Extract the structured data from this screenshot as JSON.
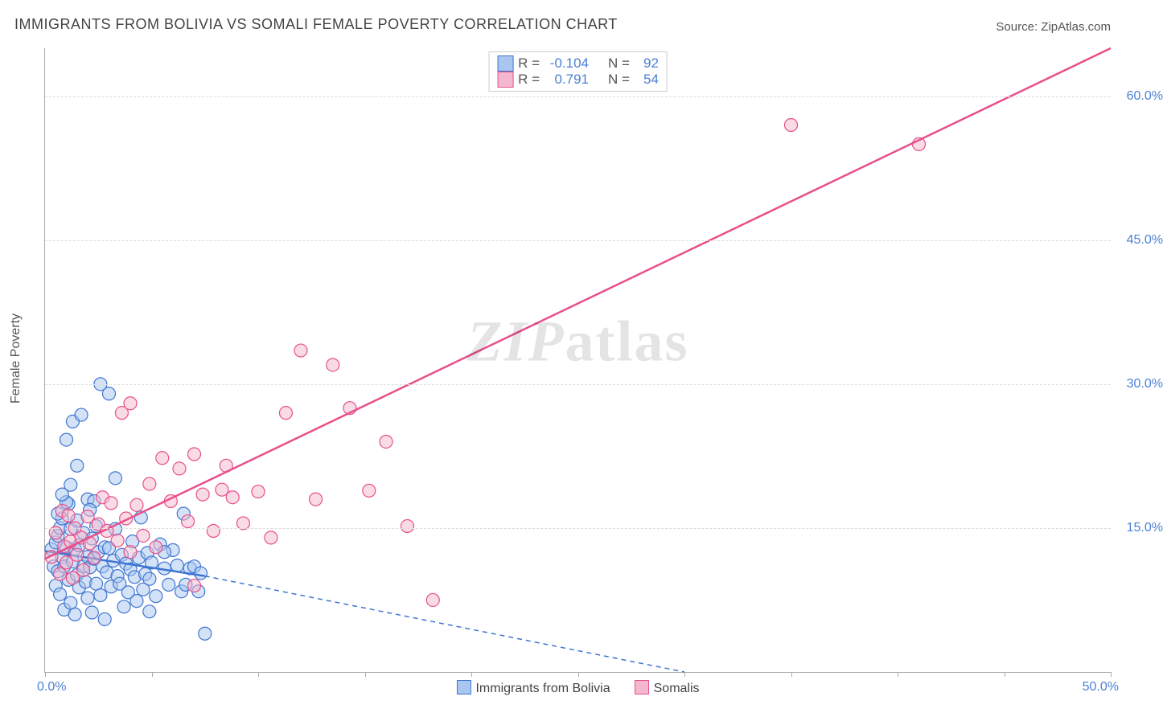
{
  "title": "IMMIGRANTS FROM BOLIVIA VS SOMALI FEMALE POVERTY CORRELATION CHART",
  "source_prefix": "Source: ",
  "source_name": "ZipAtlas.com",
  "watermark_a": "ZIP",
  "watermark_b": "atlas",
  "chart": {
    "type": "scatter",
    "ylabel": "Female Poverty",
    "xlim": [
      0,
      50
    ],
    "ylim": [
      0,
      65
    ],
    "x_ticks_pct": [
      0,
      5,
      10,
      15,
      20,
      25,
      30,
      35,
      40,
      45,
      50
    ],
    "x_tick_start_label": "0.0%",
    "x_tick_end_label": "50.0%",
    "y_ticks": [
      {
        "v": 15,
        "label": "15.0%"
      },
      {
        "v": 30,
        "label": "30.0%"
      },
      {
        "v": 45,
        "label": "45.0%"
      },
      {
        "v": 60,
        "label": "60.0%"
      }
    ],
    "grid_color": "#dddddd",
    "axis_color": "#aaaaaa",
    "tick_label_color": "#4a80d6",
    "background_color": "#ffffff",
    "marker_radius": 8,
    "marker_opacity": 0.5,
    "series": [
      {
        "name": "Immigrants from Bolivia",
        "color_fill": "#a8c6f0",
        "color_stroke": "#3f76d1",
        "R": "-0.104",
        "N": "92",
        "trend": {
          "x1": 0,
          "y1": 12.6,
          "x2": 7.5,
          "y2": 10.0,
          "dash_to_x": 30,
          "dash_to_y": 0,
          "stroke_width": 2.5
        },
        "points": [
          [
            0.3,
            12.8
          ],
          [
            0.4,
            11.0
          ],
          [
            0.5,
            13.5
          ],
          [
            0.5,
            9.0
          ],
          [
            0.6,
            14.2
          ],
          [
            0.6,
            10.5
          ],
          [
            0.7,
            15.0
          ],
          [
            0.7,
            8.1
          ],
          [
            0.8,
            12.0
          ],
          [
            0.8,
            16.0
          ],
          [
            0.9,
            11.0
          ],
          [
            0.9,
            6.5
          ],
          [
            1.0,
            13.0
          ],
          [
            1.0,
            24.2
          ],
          [
            1.1,
            9.6
          ],
          [
            1.1,
            17.5
          ],
          [
            1.2,
            14.9
          ],
          [
            1.2,
            7.2
          ],
          [
            1.3,
            11.5
          ],
          [
            1.3,
            26.1
          ],
          [
            1.4,
            6.0
          ],
          [
            1.4,
            12.8
          ],
          [
            1.5,
            10.1
          ],
          [
            1.5,
            15.8
          ],
          [
            1.6,
            8.8
          ],
          [
            1.6,
            13.2
          ],
          [
            1.7,
            26.8
          ],
          [
            1.8,
            11.0
          ],
          [
            1.8,
            14.5
          ],
          [
            1.9,
            9.4
          ],
          [
            2.0,
            12.0
          ],
          [
            2.0,
            7.7
          ],
          [
            2.1,
            10.9
          ],
          [
            2.2,
            13.9
          ],
          [
            2.2,
            6.2
          ],
          [
            2.3,
            11.8
          ],
          [
            2.4,
            9.2
          ],
          [
            2.4,
            15.2
          ],
          [
            2.5,
            12.5
          ],
          [
            2.6,
            8.0
          ],
          [
            2.6,
            30.0
          ],
          [
            2.7,
            11.0
          ],
          [
            2.8,
            13.0
          ],
          [
            2.8,
            5.5
          ],
          [
            2.9,
            10.4
          ],
          [
            3.0,
            12.9
          ],
          [
            3.0,
            29.0
          ],
          [
            3.1,
            8.9
          ],
          [
            3.2,
            11.6
          ],
          [
            3.3,
            20.2
          ],
          [
            3.4,
            10.0
          ],
          [
            3.5,
            9.2
          ],
          [
            3.6,
            12.2
          ],
          [
            3.7,
            6.8
          ],
          [
            3.8,
            11.3
          ],
          [
            3.9,
            8.3
          ],
          [
            4.0,
            10.7
          ],
          [
            4.1,
            13.6
          ],
          [
            4.2,
            9.9
          ],
          [
            4.3,
            7.4
          ],
          [
            4.4,
            11.9
          ],
          [
            4.5,
            16.1
          ],
          [
            4.6,
            8.6
          ],
          [
            4.7,
            10.2
          ],
          [
            4.8,
            12.4
          ],
          [
            4.9,
            9.7
          ],
          [
            5.0,
            11.4
          ],
          [
            5.2,
            7.9
          ],
          [
            5.4,
            13.3
          ],
          [
            5.6,
            10.8
          ],
          [
            5.8,
            9.1
          ],
          [
            6.0,
            12.7
          ],
          [
            6.2,
            11.1
          ],
          [
            6.4,
            8.4
          ],
          [
            6.5,
            16.5
          ],
          [
            6.6,
            9.1
          ],
          [
            6.8,
            10.8
          ],
          [
            7.0,
            11.0
          ],
          [
            7.2,
            8.4
          ],
          [
            7.5,
            4.0
          ],
          [
            1.0,
            17.7
          ],
          [
            1.2,
            19.5
          ],
          [
            0.8,
            18.5
          ],
          [
            2.0,
            18.0
          ],
          [
            2.3,
            17.8
          ],
          [
            1.5,
            21.5
          ],
          [
            0.6,
            16.5
          ],
          [
            7.3,
            10.3
          ],
          [
            4.9,
            6.3
          ],
          [
            3.3,
            14.9
          ],
          [
            2.1,
            16.9
          ],
          [
            5.6,
            12.5
          ]
        ]
      },
      {
        "name": "Somalis",
        "color_fill": "#f3b8cd",
        "color_stroke": "#e84f8a",
        "R": "0.791",
        "N": "54",
        "trend": {
          "x1": 0,
          "y1": 11.8,
          "x2": 50,
          "y2": 65,
          "stroke_width": 2.5
        },
        "points": [
          [
            0.3,
            12.0
          ],
          [
            0.5,
            14.5
          ],
          [
            0.7,
            10.2
          ],
          [
            0.8,
            16.8
          ],
          [
            0.9,
            13.1
          ],
          [
            1.0,
            11.4
          ],
          [
            1.1,
            16.3
          ],
          [
            1.2,
            13.6
          ],
          [
            1.3,
            9.8
          ],
          [
            1.4,
            15.0
          ],
          [
            1.5,
            12.2
          ],
          [
            1.7,
            14.0
          ],
          [
            1.8,
            10.6
          ],
          [
            2.0,
            16.2
          ],
          [
            2.1,
            13.4
          ],
          [
            2.3,
            11.9
          ],
          [
            2.5,
            15.4
          ],
          [
            2.7,
            18.2
          ],
          [
            2.9,
            14.7
          ],
          [
            3.1,
            17.6
          ],
          [
            3.4,
            13.7
          ],
          [
            3.6,
            27.0
          ],
          [
            3.8,
            16.0
          ],
          [
            4.0,
            12.5
          ],
          [
            4.3,
            17.4
          ],
          [
            4.6,
            14.2
          ],
          [
            4.9,
            19.6
          ],
          [
            5.2,
            13.0
          ],
          [
            5.5,
            22.3
          ],
          [
            5.9,
            17.8
          ],
          [
            6.3,
            21.2
          ],
          [
            6.7,
            15.7
          ],
          [
            7.0,
            22.7
          ],
          [
            7.4,
            18.5
          ],
          [
            7.9,
            14.7
          ],
          [
            8.3,
            19.0
          ],
          [
            8.8,
            18.2
          ],
          [
            9.3,
            15.5
          ],
          [
            10.0,
            18.8
          ],
          [
            10.6,
            14.0
          ],
          [
            11.3,
            27.0
          ],
          [
            12.0,
            33.5
          ],
          [
            12.7,
            18.0
          ],
          [
            13.5,
            32.0
          ],
          [
            14.3,
            27.5
          ],
          [
            15.2,
            18.9
          ],
          [
            16.0,
            24.0
          ],
          [
            17.0,
            15.2
          ],
          [
            18.2,
            7.5
          ],
          [
            35.0,
            57.0
          ],
          [
            41.0,
            55.0
          ],
          [
            4.0,
            28.0
          ],
          [
            7.0,
            9.0
          ],
          [
            8.5,
            21.5
          ]
        ]
      }
    ]
  },
  "legend_labels": {
    "r_label": "R =",
    "n_label": "N ="
  }
}
